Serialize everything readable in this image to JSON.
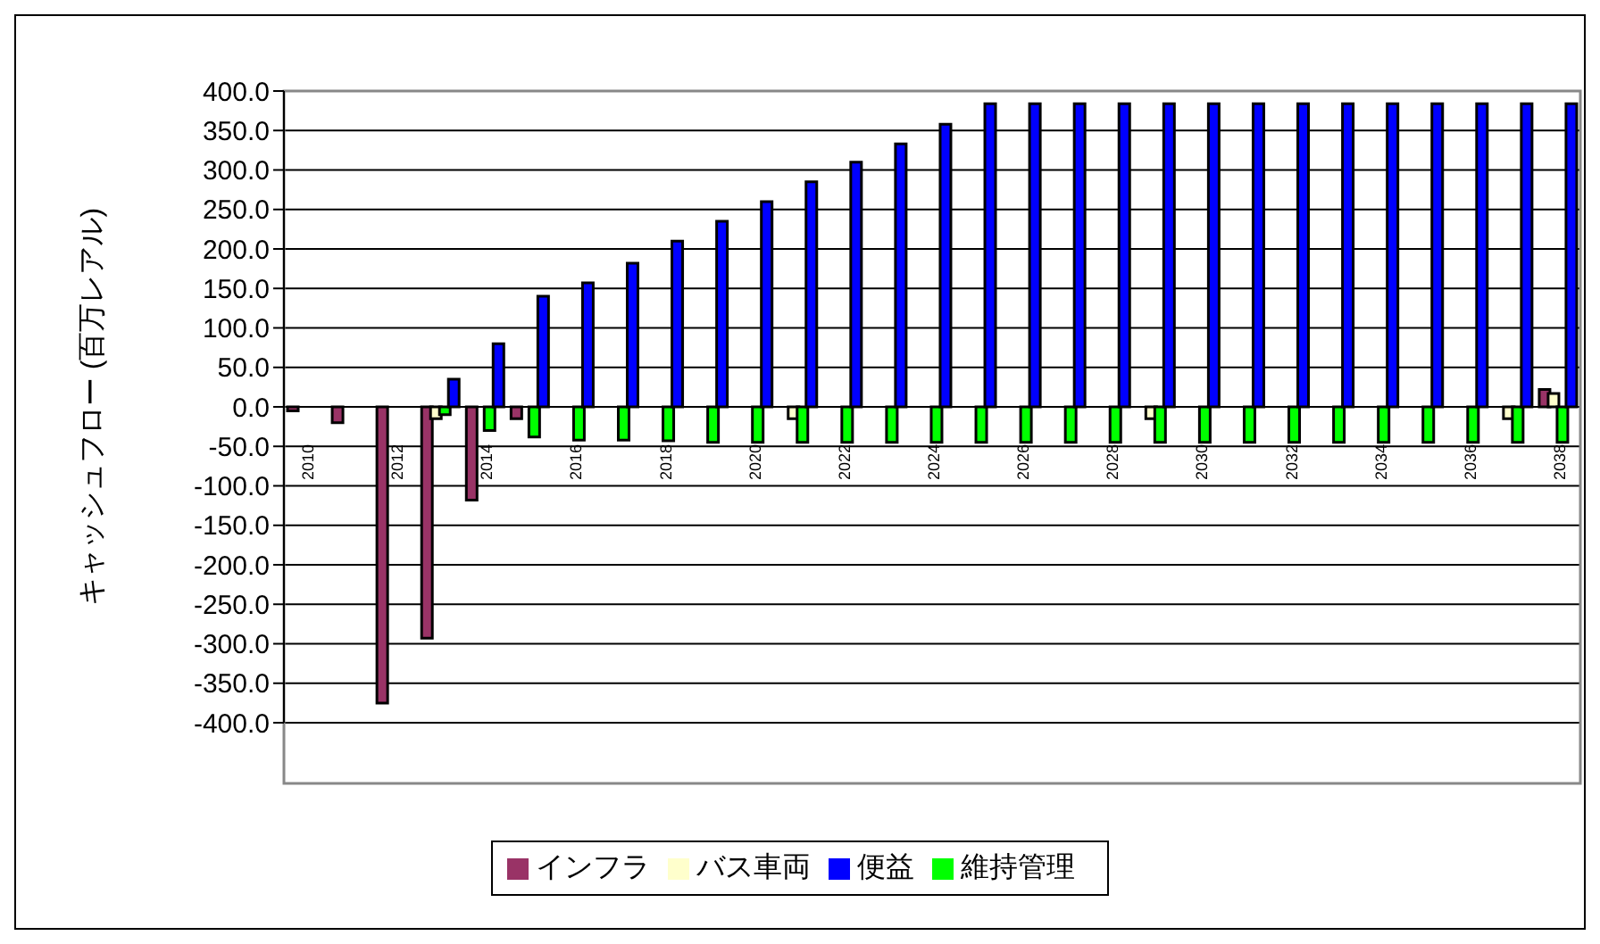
{
  "chart_data": {
    "type": "bar",
    "ylabel": "キャッシュフロー (百万レアル)",
    "categories": [
      "2010",
      null,
      "2012",
      null,
      "2014",
      null,
      "2016",
      null,
      "2018",
      null,
      "2020",
      null,
      "2022",
      null,
      "2024",
      null,
      "2026",
      null,
      "2028",
      null,
      "2030",
      null,
      "2032",
      null,
      "2034",
      null,
      "2036",
      null,
      "2038"
    ],
    "series": [
      {
        "name": "インフラ",
        "color": "#993366",
        "values": [
          -5,
          -20,
          -375,
          -293,
          -118,
          -15,
          0,
          0,
          0,
          0,
          0,
          0,
          0,
          0,
          0,
          0,
          0,
          0,
          0,
          0,
          0,
          0,
          0,
          0,
          0,
          0,
          0,
          0,
          22
        ]
      },
      {
        "name": "バス車両",
        "color": "#ffffcc",
        "values": [
          0,
          0,
          0,
          -15,
          0,
          0,
          0,
          0,
          0,
          0,
          0,
          -15,
          0,
          0,
          0,
          0,
          0,
          0,
          0,
          -15,
          0,
          0,
          0,
          0,
          0,
          0,
          0,
          -15,
          17
        ]
      },
      {
        "name": "維持管理",
        "color": "#00ff00",
        "values": [
          0,
          0,
          0,
          -10,
          -30,
          -38,
          -42,
          -42,
          -43,
          -45,
          -45,
          -45,
          -45,
          -45,
          -45,
          -45,
          -45,
          -45,
          -45,
          -45,
          -45,
          -45,
          -45,
          -45,
          -45,
          -45,
          -45,
          -45,
          -45
        ]
      },
      {
        "name": "便益",
        "color": "#0000ff",
        "values": [
          0,
          0,
          0,
          35,
          80,
          140,
          157,
          182,
          210,
          235,
          260,
          285,
          310,
          333,
          358,
          384,
          384,
          384,
          384,
          384,
          384,
          384,
          384,
          384,
          384,
          384,
          384,
          384,
          384
        ]
      }
    ],
    "ylim": [
      -400,
      400
    ],
    "yticks": [
      {
        "value": -400,
        "label": "-400.0"
      },
      {
        "value": -350,
        "label": "-350.0"
      },
      {
        "value": -300,
        "label": "-300.0"
      },
      {
        "value": -250,
        "label": "-250.0"
      },
      {
        "value": -200,
        "label": "-200.0"
      },
      {
        "value": -150,
        "label": "-150.0"
      },
      {
        "value": -100,
        "label": "-100.0"
      },
      {
        "value": -50,
        "label": "-50.0"
      },
      {
        "value": 0,
        "label": "0.0"
      },
      {
        "value": 50,
        "label": "50.0"
      },
      {
        "value": 100,
        "label": "100.0"
      },
      {
        "value": 150,
        "label": "150.0"
      },
      {
        "value": 200,
        "label": "200.0"
      },
      {
        "value": 250,
        "label": "250.0"
      },
      {
        "value": 300,
        "label": "300.0"
      },
      {
        "value": 350,
        "label": "350.0"
      },
      {
        "value": 400,
        "label": "400.0"
      }
    ],
    "grid": "y",
    "legend": "bottom"
  }
}
